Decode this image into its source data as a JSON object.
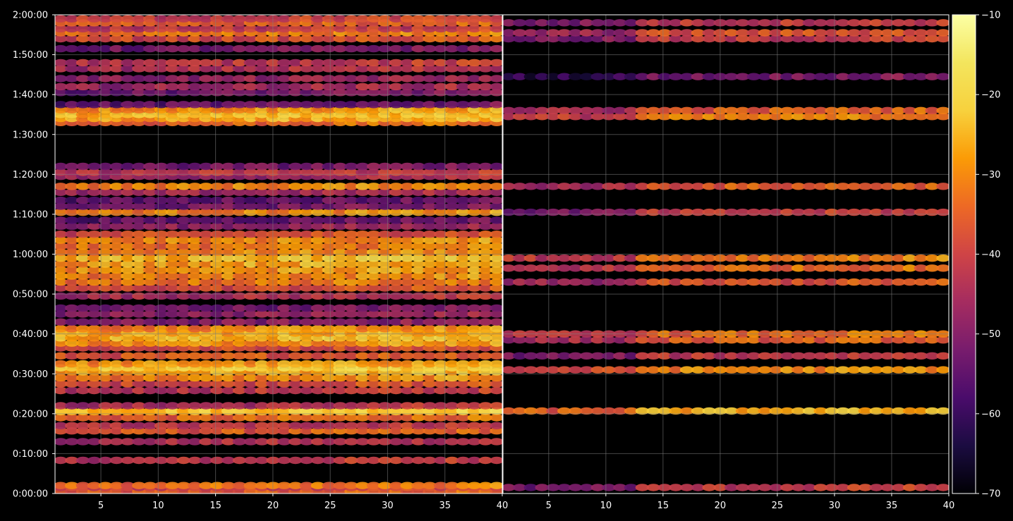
{
  "chart_data": {
    "type": "heatmap",
    "title": "",
    "xlabel": "",
    "ylabel": "",
    "panels": [
      {
        "name": "",
        "x_range": [
          1,
          40
        ],
        "x_ticks": [
          5,
          10,
          15,
          20,
          25,
          30,
          35,
          40
        ],
        "band_level": [
          [
            0.5,
            -38
          ],
          [
            1.5,
            -42
          ],
          [
            2.0,
            -35
          ],
          [
            8.3,
            -44
          ],
          [
            13.0,
            -46
          ],
          [
            15.7,
            -38
          ],
          [
            17.0,
            -44
          ],
          [
            19.0,
            -36
          ],
          [
            20.5,
            -30
          ],
          [
            20.7,
            -24
          ],
          [
            22.0,
            -46
          ],
          [
            25.8,
            -44
          ],
          [
            27.5,
            -40
          ],
          [
            29.0,
            -32
          ],
          [
            30.5,
            -28
          ],
          [
            31.5,
            -24
          ],
          [
            32.5,
            -30
          ],
          [
            34.5,
            -38
          ],
          [
            36.5,
            -40
          ],
          [
            37.7,
            -30
          ],
          [
            39.0,
            -26
          ],
          [
            40.2,
            -28
          ],
          [
            41.3,
            -32
          ],
          [
            43.0,
            -52
          ],
          [
            45.0,
            -50
          ],
          [
            46.5,
            -54
          ],
          [
            49.5,
            -46
          ],
          [
            51.5,
            -40
          ],
          [
            53.0,
            -34
          ],
          [
            54.5,
            -32
          ],
          [
            56.0,
            -30
          ],
          [
            57.5,
            -28
          ],
          [
            59.0,
            -26
          ],
          [
            60.5,
            -32
          ],
          [
            62.0,
            -34
          ],
          [
            63.5,
            -32
          ],
          [
            65.0,
            -40
          ],
          [
            67.0,
            -50
          ],
          [
            68.5,
            -56
          ],
          [
            70.5,
            -32
          ],
          [
            72.0,
            -54
          ],
          [
            73.5,
            -56
          ],
          [
            75.5,
            -48
          ],
          [
            77.0,
            -32
          ],
          [
            79.5,
            -48
          ],
          [
            80.5,
            -44
          ],
          [
            82.0,
            -54
          ],
          [
            93.0,
            -36
          ],
          [
            94.0,
            -28
          ],
          [
            95.0,
            -26
          ],
          [
            96.2,
            -30
          ],
          [
            97.5,
            -56
          ],
          [
            100.5,
            -54
          ],
          [
            102.0,
            -48
          ],
          [
            104.0,
            -50
          ],
          [
            106.5,
            -46
          ],
          [
            108.0,
            -44
          ],
          [
            111.5,
            -54
          ],
          [
            114.0,
            -40
          ],
          [
            115.5,
            -34
          ],
          [
            116.5,
            -44
          ],
          [
            118.0,
            -38
          ],
          [
            119.0,
            -42
          ]
        ]
      },
      {
        "name": "",
        "x_range": [
          1,
          40
        ],
        "x_ticks": [
          5,
          10,
          15,
          20,
          25,
          30,
          35,
          40
        ],
        "band_level": [
          [
            1.5,
            -44
          ],
          [
            20.7,
            -28
          ],
          [
            31.0,
            -32
          ],
          [
            34.5,
            -44
          ],
          [
            38.5,
            -38
          ],
          [
            40.0,
            -36
          ],
          [
            53.0,
            -40
          ],
          [
            56.5,
            -36
          ],
          [
            59.0,
            -34
          ],
          [
            70.5,
            -44
          ],
          [
            77.0,
            -38
          ],
          [
            94.5,
            -34
          ],
          [
            96.0,
            -38
          ],
          [
            104.5,
            -54
          ],
          [
            114.0,
            -44
          ],
          [
            115.5,
            -40
          ],
          [
            118.0,
            -44
          ]
        ]
      }
    ],
    "y_axis": {
      "unit": "seconds",
      "range": [
        0,
        7200
      ],
      "ticks": [
        {
          "value": 0,
          "label": "0:00:00"
        },
        {
          "value": 600,
          "label": "0:10:00"
        },
        {
          "value": 1200,
          "label": "0:20:00"
        },
        {
          "value": 1800,
          "label": "0:30:00"
        },
        {
          "value": 2400,
          "label": "0:40:00"
        },
        {
          "value": 3000,
          "label": "0:50:00"
        },
        {
          "value": 3600,
          "label": "1:00:00"
        },
        {
          "value": 4200,
          "label": "1:10:00"
        },
        {
          "value": 4800,
          "label": "1:20:00"
        },
        {
          "value": 5400,
          "label": "1:30:00"
        },
        {
          "value": 6000,
          "label": "1:40:00"
        },
        {
          "value": 6600,
          "label": "1:50:00"
        },
        {
          "value": 7200,
          "label": "2:00:00"
        }
      ]
    },
    "colorbar": {
      "colormap": "inferno",
      "range": [
        -70,
        -10
      ],
      "ticks": [
        -10,
        -20,
        -30,
        -40,
        -50,
        -60,
        -70
      ],
      "tick_labels": [
        "−10",
        "−20",
        "−30",
        "−40",
        "−50",
        "−60",
        "−70"
      ]
    },
    "grid": true,
    "colors": {
      "background": "#000000",
      "axes": "#ffffff",
      "grid": "#808080"
    }
  }
}
